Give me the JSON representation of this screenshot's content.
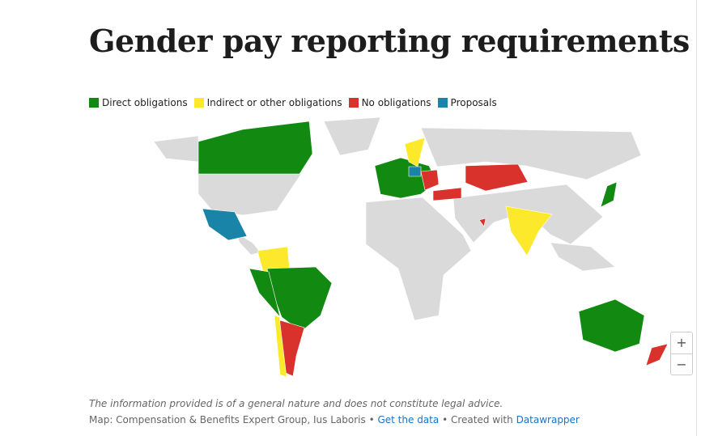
{
  "title": "Gender pay reporting requirements",
  "legend": [
    {
      "label": "Direct obligations",
      "color": "#128a12"
    },
    {
      "label": "Indirect or other obligations",
      "color": "#fde92c"
    },
    {
      "label": "No obligations",
      "color": "#d9322c"
    },
    {
      "label": "Proposals",
      "color": "#1a84a8"
    }
  ],
  "zoom_in": "+",
  "zoom_out": "−",
  "footnote": "The information provided is of a general nature and does not constitute legal advice.",
  "source": "Map: Compensation & Benefits Expert Group, Ius Laboris",
  "separator": "•",
  "get_data": "Get the data",
  "created_with": "Created with",
  "datawrapper": "Datawrapper"
}
